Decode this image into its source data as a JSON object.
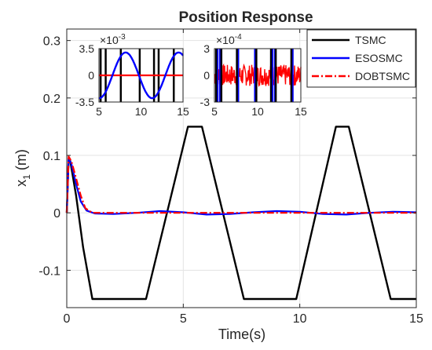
{
  "chart_data": {
    "type": "line",
    "title": "Position Response",
    "xlabel": "Time(s)",
    "ylabel_main": "x",
    "ylabel_sub": "1",
    "ylabel_unit": " (m)",
    "xlim": [
      0,
      15
    ],
    "ylim": [
      -0.165,
      0.32
    ],
    "xticks": [
      0,
      5,
      10,
      15
    ],
    "xtick_labels": [
      "0",
      "5",
      "10",
      "15"
    ],
    "yticks": [
      -0.1,
      0,
      0.1,
      0.2,
      0.3
    ],
    "ytick_labels": [
      "-0.1",
      "0",
      "0.1",
      "0.2",
      "0.3"
    ],
    "grid": true,
    "legend_position": "top-right",
    "series": [
      {
        "name": "TSMC",
        "color": "#000000",
        "style": "solid",
        "x": [
          0,
          0.08,
          0.15,
          0.4,
          0.7,
          1.1,
          3.4,
          5.2,
          5.8,
          7.6,
          9.85,
          11.55,
          12.1,
          13.9,
          15
        ],
        "y": [
          0.0,
          0.095,
          0.09,
          0.03,
          -0.06,
          -0.15,
          -0.15,
          0.15,
          0.15,
          -0.15,
          -0.15,
          0.15,
          0.15,
          -0.15,
          -0.15
        ]
      },
      {
        "name": "ESOSMC",
        "color": "#0000ff",
        "style": "solid",
        "x": [
          0,
          0.08,
          0.2,
          0.4,
          0.6,
          0.85,
          1.2,
          2,
          3,
          4,
          5,
          6,
          7,
          8,
          9,
          10,
          11,
          12,
          13,
          14,
          15
        ],
        "y": [
          0.0,
          0.095,
          0.085,
          0.05,
          0.02,
          0.004,
          -0.001,
          -0.002,
          0.0,
          0.003,
          0.001,
          -0.003,
          -0.002,
          0.001,
          0.003,
          0.002,
          -0.002,
          -0.003,
          0.0,
          0.002,
          0.001
        ]
      },
      {
        "name": "DOBTSMC",
        "color": "#ff0000",
        "style": "dashdot",
        "x": [
          0,
          0.08,
          0.2,
          0.4,
          0.6,
          0.8,
          1.1,
          2,
          4,
          6,
          8,
          10,
          12,
          14,
          15
        ],
        "y": [
          0.0,
          0.098,
          0.09,
          0.06,
          0.03,
          0.008,
          0.0,
          0.0,
          0.0,
          0.0,
          0.0,
          0.0,
          0.0,
          0.0,
          0.0
        ]
      }
    ],
    "insets": [
      {
        "exponent_base": "×10",
        "exponent_power": "-3",
        "xlim": [
          5,
          15
        ],
        "ylim": [
          -3.5,
          3.5
        ],
        "xticks": [
          5,
          10,
          15
        ],
        "xtick_labels": [
          "5",
          "10",
          "15"
        ],
        "yticks": [
          -3.5,
          0,
          3.5
        ],
        "ytick_labels": [
          "-3.5",
          "0",
          "3.5"
        ],
        "tsmc_vertical_x": [
          5.2,
          5.8,
          7.6,
          9.85,
          11.55,
          12.1,
          13.9
        ],
        "blue_wave": {
          "amplitude": 3.0,
          "period": 6.3,
          "phase_time": 6.6
        },
        "red_level": 0.0
      },
      {
        "exponent_base": "×10",
        "exponent_power": "-4",
        "xlim": [
          5,
          15
        ],
        "ylim": [
          -3,
          3
        ],
        "xticks": [
          5,
          10,
          15
        ],
        "xtick_labels": [
          "5",
          "10",
          "15"
        ],
        "yticks": [
          -3,
          0,
          3
        ],
        "ytick_labels": [
          "-3",
          "0",
          "3"
        ],
        "tsmc_vertical_x": [
          5.2,
          5.8,
          7.6,
          9.85,
          11.55,
          12.1,
          13.9
        ],
        "blue_vertical_x": [
          5.35,
          5.65,
          7.75,
          9.7,
          11.7,
          12.0,
          14.05
        ],
        "red_noise_amplitude": 1.2
      }
    ]
  }
}
